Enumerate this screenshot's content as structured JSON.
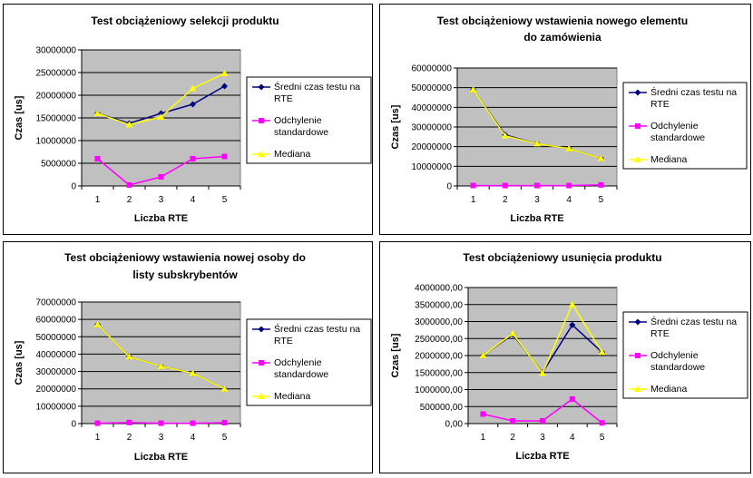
{
  "chart_data": [
    {
      "type": "line",
      "title": [
        "Test obciążeniowy selekcji produktu"
      ],
      "xlabel": "Liczba RTE",
      "ylabel": "Czas [us]",
      "categories": [
        "1",
        "2",
        "3",
        "4",
        "5"
      ],
      "ylim": [
        0,
        30000000
      ],
      "yticks": [
        "0",
        "5000000",
        "10000000",
        "15000000",
        "20000000",
        "25000000",
        "30000000"
      ],
      "series": [
        {
          "name": [
            "Średni czas testu na",
            "RTE"
          ],
          "values": [
            16000000,
            13800000,
            16000000,
            18000000,
            22000000
          ],
          "color": "#00007f",
          "marker": "diamond"
        },
        {
          "name": [
            "Odchylenie",
            "standardowe"
          ],
          "values": [
            6000000,
            200000,
            2000000,
            6000000,
            6500000
          ],
          "color": "#ff00ff",
          "marker": "square"
        },
        {
          "name": [
            "Mediana"
          ],
          "values": [
            16000000,
            13500000,
            15200000,
            21500000,
            24800000
          ],
          "color": "#ffff00",
          "marker": "triangle"
        }
      ],
      "legend": "right"
    },
    {
      "type": "line",
      "title": [
        "Test obciążeniowy wstawienia nowego elementu",
        "do zamówienia"
      ],
      "xlabel": "Liczba RTE",
      "ylabel": "Czas [us]",
      "categories": [
        "1",
        "2",
        "3",
        "4",
        "5"
      ],
      "ylim": [
        0,
        60000000
      ],
      "yticks": [
        "0",
        "10000000",
        "20000000",
        "30000000",
        "40000000",
        "50000000",
        "60000000"
      ],
      "series": [
        {
          "name": [
            "Średni czas testu na",
            "RTE"
          ],
          "values": [
            49000000,
            26000000,
            21500000,
            19000000,
            14000000
          ],
          "color": "#00007f",
          "marker": "diamond"
        },
        {
          "name": [
            "Odchylenie",
            "standardowe"
          ],
          "values": [
            200000,
            200000,
            200000,
            200000,
            500000
          ],
          "color": "#ff00ff",
          "marker": "square"
        },
        {
          "name": [
            "Mediana"
          ],
          "values": [
            49000000,
            25500000,
            21500000,
            19000000,
            14000000
          ],
          "color": "#ffff00",
          "marker": "triangle"
        }
      ],
      "legend": "right"
    },
    {
      "type": "line",
      "title": [
        "Test obciążeniowy wstawienia nowej osoby do",
        "listy subskrybentów"
      ],
      "xlabel": "Liczba RTE",
      "ylabel": "Czas [us]",
      "categories": [
        "1",
        "2",
        "3",
        "4",
        "5"
      ],
      "ylim": [
        0,
        70000000
      ],
      "yticks": [
        "0",
        "10000000",
        "20000000",
        "30000000",
        "40000000",
        "50000000",
        "60000000",
        "70000000"
      ],
      "series": [
        {
          "name": [
            "Średni czas testu na",
            "RTE"
          ],
          "values": [
            57000000,
            38500000,
            33000000,
            29000000,
            20000000
          ],
          "color": "#00007f",
          "marker": "diamond"
        },
        {
          "name": [
            "Odchylenie",
            "standardowe"
          ],
          "values": [
            200000,
            600000,
            200000,
            200000,
            500000
          ],
          "color": "#ff00ff",
          "marker": "square"
        },
        {
          "name": [
            "Mediana"
          ],
          "values": [
            57000000,
            38500000,
            33000000,
            29000000,
            20000000
          ],
          "color": "#ffff00",
          "marker": "triangle"
        }
      ],
      "legend": "right"
    },
    {
      "type": "line",
      "title": [
        "Test obciążeniowy usunięcia produktu"
      ],
      "xlabel": "Liczba RTE",
      "ylabel": "Czas [us]",
      "categories": [
        "1",
        "2",
        "3",
        "4",
        "5"
      ],
      "ylim": [
        0,
        4000000
      ],
      "yticks": [
        "0,00",
        "500000,00",
        "1000000,00",
        "1500000,00",
        "2000000,00",
        "2500000,00",
        "3000000,00",
        "3500000,00",
        "4000000,00"
      ],
      "series": [
        {
          "name": [
            "Średni czas testu na",
            "RTE"
          ],
          "values": [
            2000000,
            2620000,
            1500000,
            2900000,
            2100000
          ],
          "color": "#00007f",
          "marker": "diamond"
        },
        {
          "name": [
            "Odchylenie",
            "standardowe"
          ],
          "values": [
            280000,
            80000,
            80000,
            720000,
            20000
          ],
          "color": "#ff00ff",
          "marker": "square"
        },
        {
          "name": [
            "Mediana"
          ],
          "values": [
            2000000,
            2650000,
            1480000,
            3500000,
            2100000
          ],
          "color": "#ffff00",
          "marker": "triangle"
        }
      ],
      "legend": "right"
    }
  ]
}
